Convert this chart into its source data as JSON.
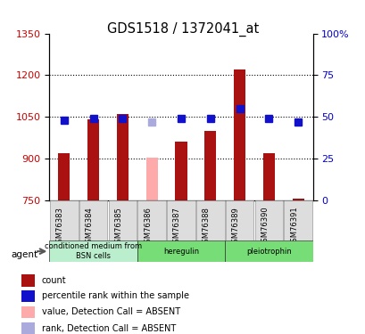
{
  "title": "GDS1518 / 1372041_at",
  "samples": [
    "GSM76383",
    "GSM76384",
    "GSM76385",
    "GSM76386",
    "GSM76387",
    "GSM76388",
    "GSM76389",
    "GSM76390",
    "GSM76391"
  ],
  "bar_values": [
    920,
    1040,
    1060,
    905,
    960,
    1000,
    1220,
    920,
    755
  ],
  "bar_absent": [
    false,
    false,
    false,
    true,
    false,
    false,
    false,
    false,
    false
  ],
  "rank_values": [
    48,
    49,
    49,
    47,
    49,
    49,
    55,
    49,
    47
  ],
  "rank_absent": [
    false,
    false,
    false,
    true,
    false,
    false,
    false,
    false,
    false
  ],
  "ylim_left": [
    750,
    1350
  ],
  "ylim_right": [
    0,
    100
  ],
  "yticks_left": [
    750,
    900,
    1050,
    1200,
    1350
  ],
  "yticks_right": [
    0,
    25,
    50,
    75,
    100
  ],
  "yticklabels_right": [
    "0",
    "25",
    "50",
    "75",
    "100%"
  ],
  "bar_color": "#aa1111",
  "bar_absent_color": "#ffaaaa",
  "rank_color": "#1111cc",
  "rank_absent_color": "#aaaadd",
  "agent_groups": [
    {
      "label": "conditioned medium from\nBSN cells",
      "start": 0,
      "end": 3
    },
    {
      "label": "heregulin",
      "start": 3,
      "end": 6
    },
    {
      "label": "pleiotrophin",
      "start": 6,
      "end": 9
    }
  ],
  "agent_group_colors": [
    "#bbeecc",
    "#77dd77",
    "#77dd77"
  ],
  "legend_labels": [
    "count",
    "percentile rank within the sample",
    "value, Detection Call = ABSENT",
    "rank, Detection Call = ABSENT"
  ],
  "legend_colors": [
    "#aa1111",
    "#1111cc",
    "#ffaaaa",
    "#aaaadd"
  ],
  "dotted_yticks": [
    900,
    1050,
    1200
  ],
  "background_color": "#ffffff",
  "tick_color_left": "#cc0000",
  "tick_color_right": "#0000cc",
  "bar_width": 0.4,
  "rank_marker_size": 6
}
